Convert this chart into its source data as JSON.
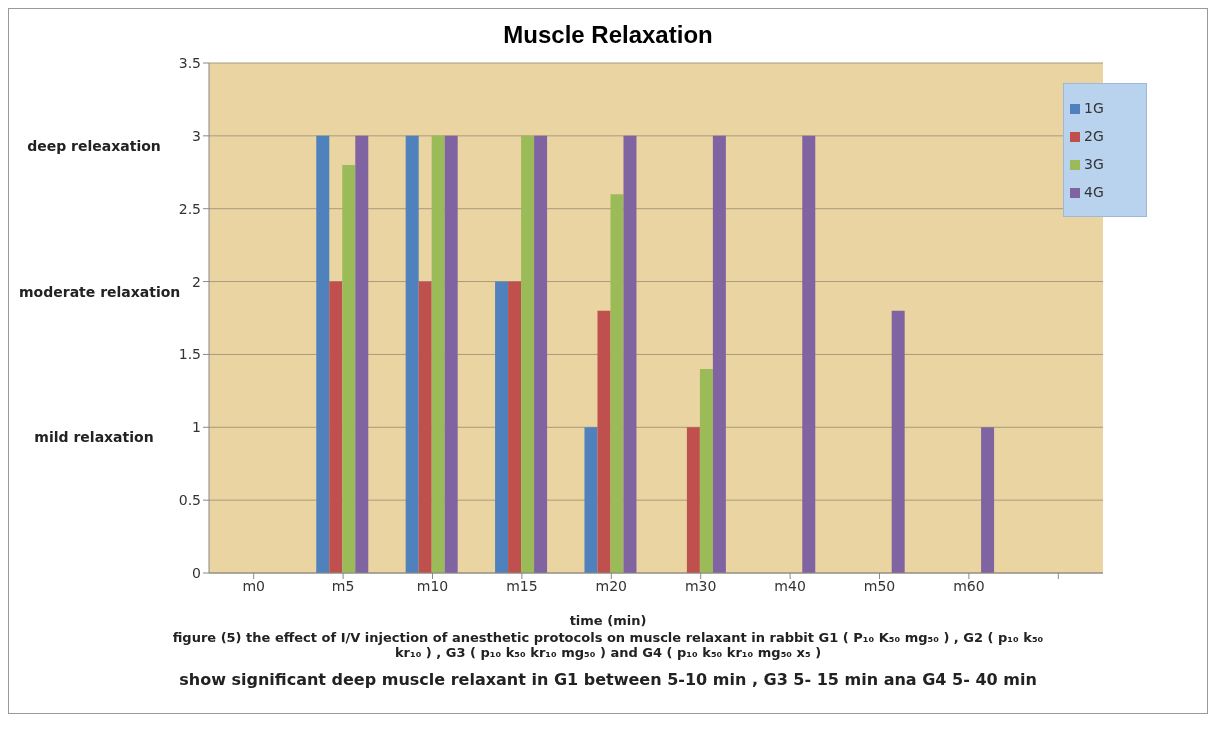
{
  "chart_data": {
    "type": "bar",
    "title": "Muscle Relaxation",
    "xlabel": "time (min)",
    "categories": [
      "m0",
      "m5",
      "m10",
      "m15",
      "m20",
      "m30",
      "m40",
      "m50",
      "m60",
      null
    ],
    "series": [
      {
        "name": "1G",
        "color": "#4f81bd",
        "values": [
          null,
          3,
          3,
          2,
          1,
          null,
          null,
          null,
          null,
          null
        ]
      },
      {
        "name": "2G",
        "color": "#c0504d",
        "values": [
          null,
          2,
          2,
          2,
          1.8,
          1,
          null,
          null,
          null,
          null
        ]
      },
      {
        "name": "3G",
        "color": "#9bbb59",
        "values": [
          null,
          2.8,
          3,
          3,
          2.6,
          1.4,
          null,
          null,
          null,
          null
        ]
      },
      {
        "name": "4G",
        "color": "#8064a2",
        "values": [
          null,
          3,
          3,
          3,
          3,
          3,
          3,
          1.8,
          1,
          null
        ]
      }
    ],
    "ylim": [
      0,
      3.5
    ],
    "yticks": [
      0,
      0.5,
      1,
      1.5,
      2,
      2.5,
      3,
      3.5
    ],
    "grid": "y",
    "legend": "top right",
    "annotations": [
      "deep releaxation",
      "moderate relaxation",
      "mild relaxation",
      "figure (5) the effect of I/V injection of anesthetic protocols on muscle relaxant in rabbit G1 ( P₁₀ K₅₀ mg₅₀ ) , G2 ( p₁₀ k₅₀ kr₁₀ ) , G3 ( p₁₀ k₅₀ kr₁₀ mg₅₀ ) and G4 ( p₁₀ k₅₀ kr₁₀ mg₅₀ x₅ )",
      "show significant deep muscle relaxant in G1 between 5-10 min , G3 5- 15 min  ana G4  5- 40 min"
    ]
  }
}
